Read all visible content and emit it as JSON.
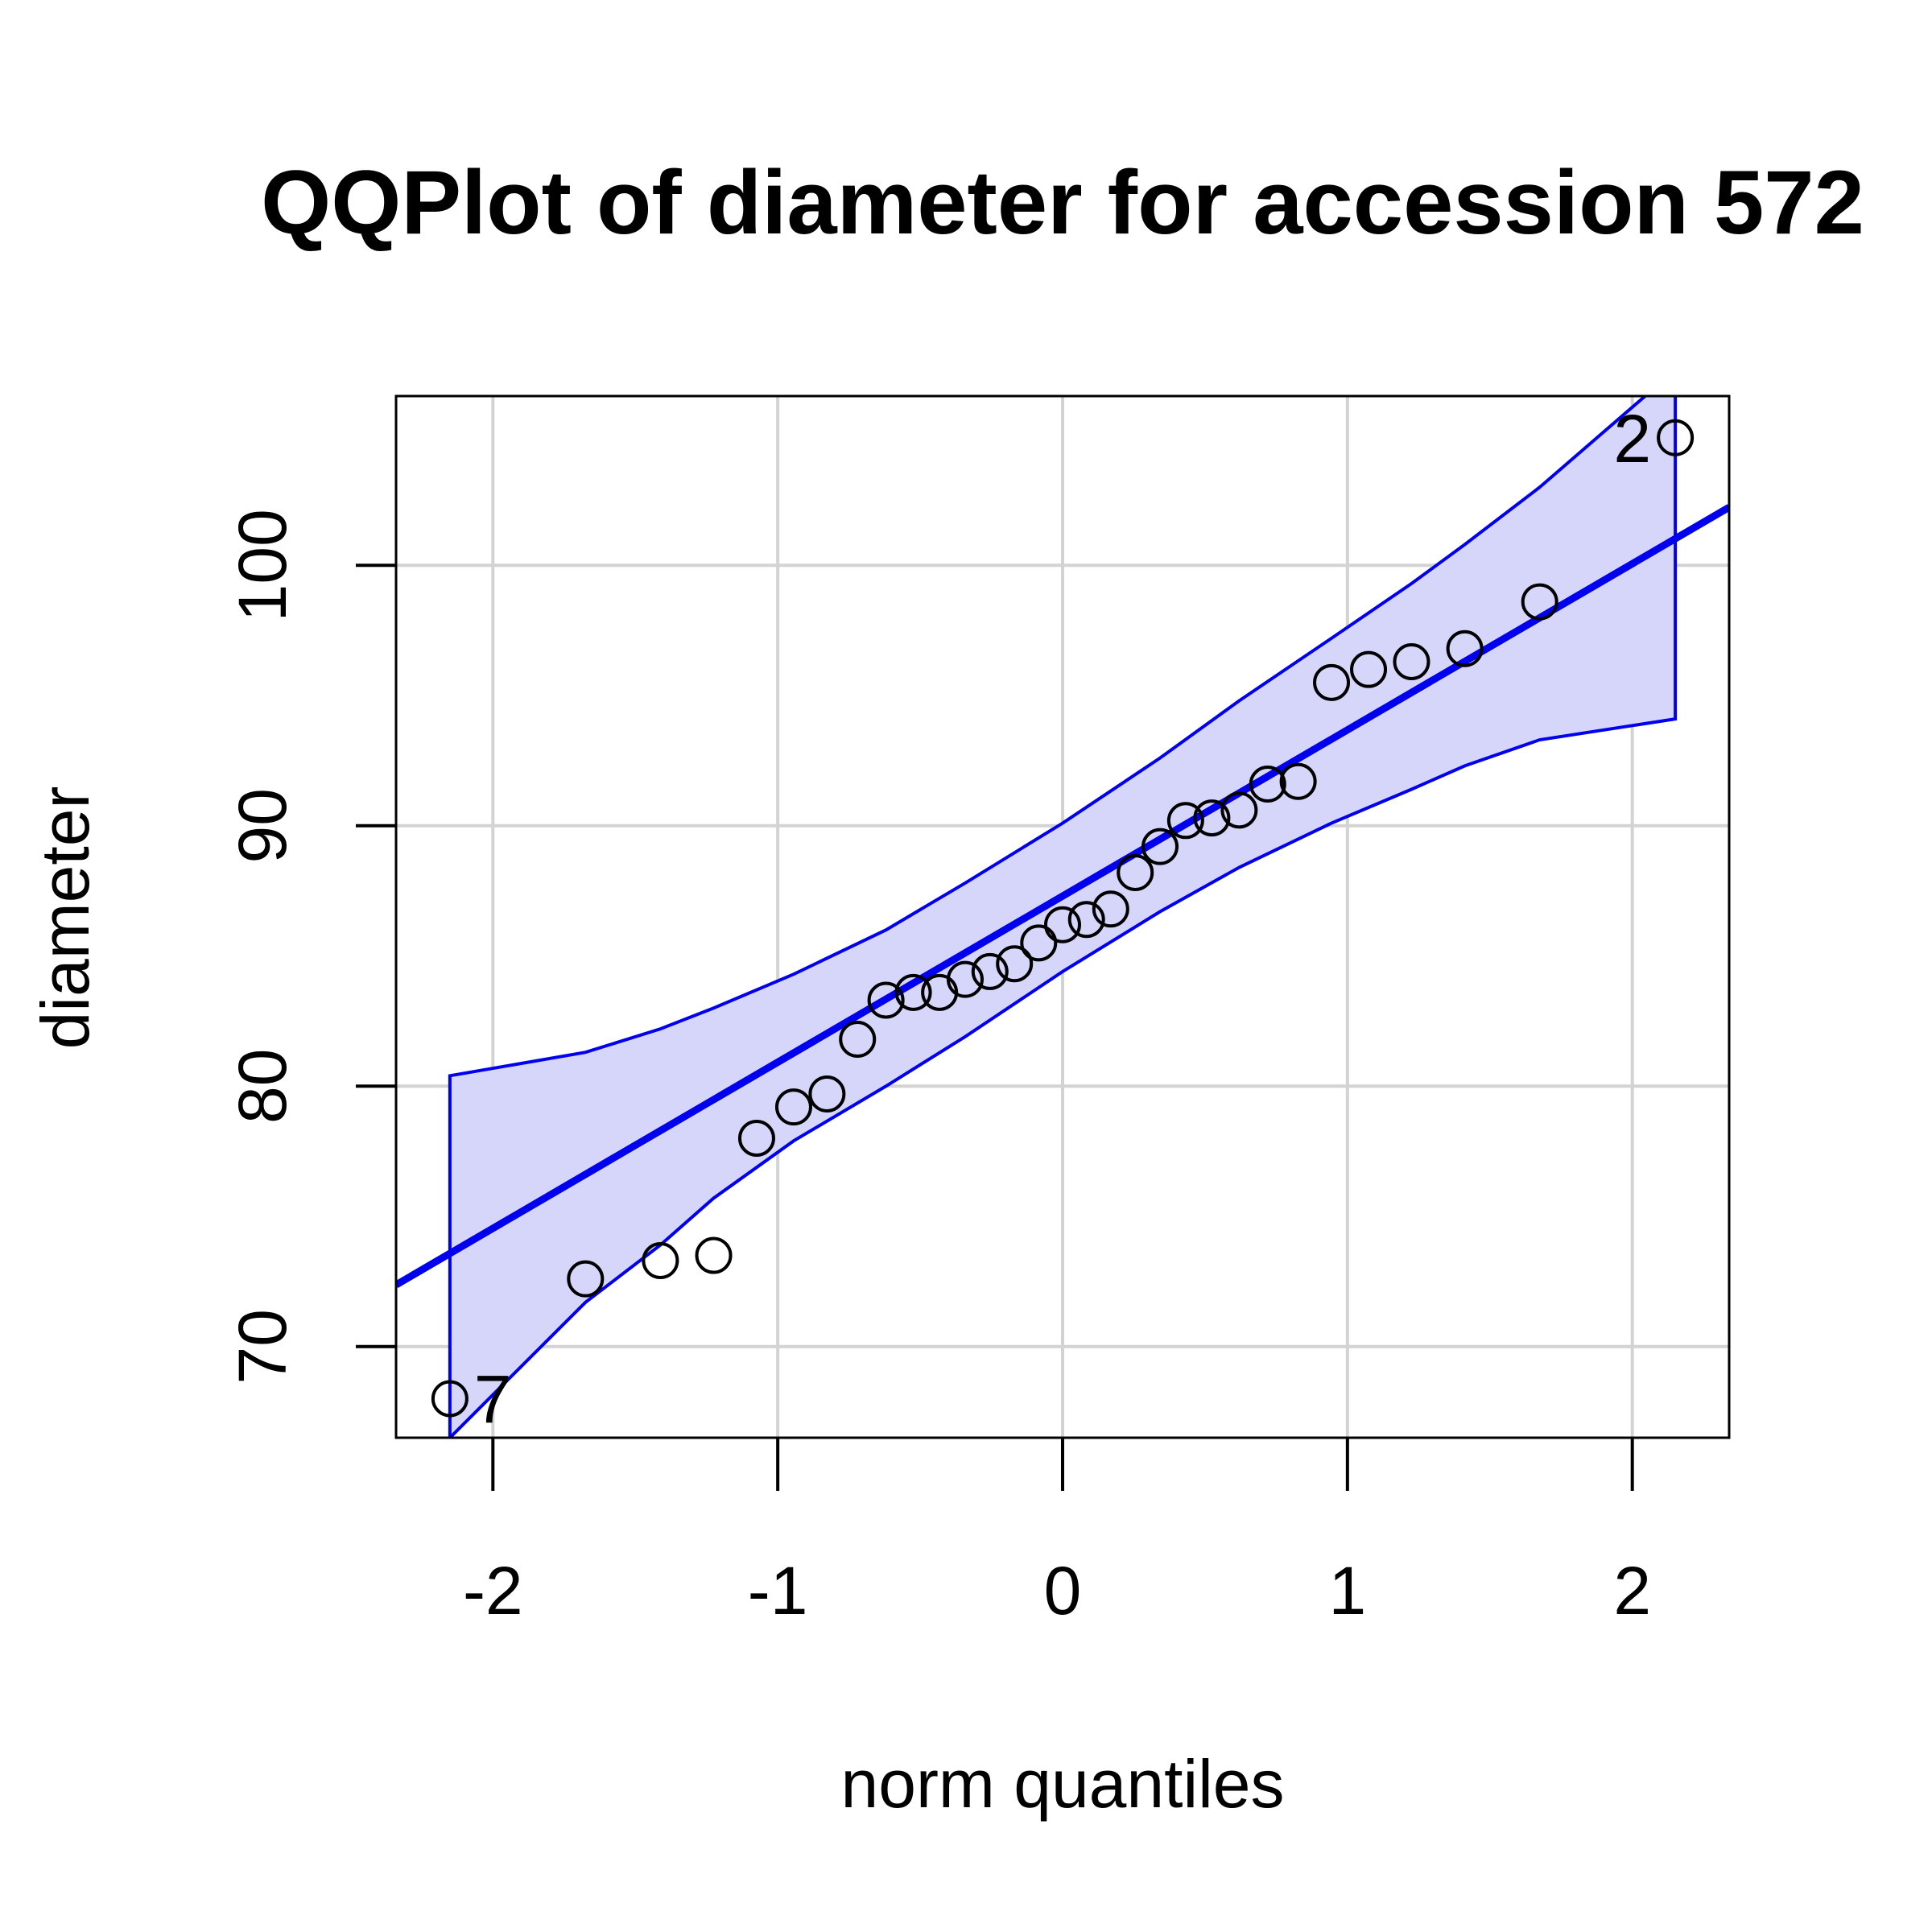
{
  "chart_data": {
    "type": "scatter",
    "title": "QQPlot of diameter for accession 572",
    "xlabel": "norm quantiles",
    "ylabel": "diameter",
    "xlim": [
      -2.34,
      2.34
    ],
    "ylim": [
      66.5,
      106.5
    ],
    "xticks": [
      -2,
      -1,
      0,
      1,
      2
    ],
    "yticks": [
      70,
      80,
      90,
      100
    ],
    "grid": true,
    "colors": {
      "band_fill": "#d6d6fb",
      "band_line": "#0000ee",
      "ref_line": "#0000ee",
      "points": "#000000",
      "grid": "#d3d3d3"
    },
    "reference_line": {
      "slope": 6.38,
      "intercept": 87.3
    },
    "points": {
      "x": [
        -2.151,
        -1.675,
        -1.412,
        -1.225,
        -1.074,
        -0.944,
        -0.827,
        -0.72,
        -0.62,
        -0.524,
        -0.432,
        -0.342,
        -0.255,
        -0.169,
        -0.084,
        0.0,
        0.084,
        0.169,
        0.255,
        0.342,
        0.432,
        0.524,
        0.62,
        0.72,
        0.827,
        0.944,
        1.074,
        1.225,
        1.412,
        1.675,
        2.151
      ],
      "y": [
        68.0,
        72.6,
        73.3,
        73.5,
        78.0,
        79.2,
        79.7,
        81.8,
        83.3,
        83.6,
        83.6,
        84.1,
        84.4,
        84.7,
        85.5,
        86.2,
        86.4,
        86.8,
        88.2,
        89.2,
        90.2,
        90.3,
        90.6,
        91.6,
        91.7,
        95.5,
        96.0,
        96.3,
        96.8,
        98.6,
        104.9
      ]
    },
    "band": {
      "x": [
        -2.151,
        -1.675,
        -1.412,
        -1.225,
        -0.944,
        -0.62,
        -0.342,
        0.0,
        0.342,
        0.62,
        0.944,
        1.225,
        1.412,
        1.675,
        2.151
      ],
      "upper": [
        80.4,
        81.3,
        82.2,
        83.0,
        84.3,
        86.0,
        87.8,
        90.1,
        92.6,
        94.8,
        97.2,
        99.3,
        100.8,
        103.0,
        107.5
      ],
      "lower": [
        66.5,
        71.7,
        73.9,
        75.7,
        77.9,
        80.0,
        81.9,
        84.4,
        86.7,
        88.4,
        90.1,
        91.4,
        92.3,
        93.3,
        94.1
      ]
    },
    "labels": [
      {
        "text": "7",
        "x": -2.151,
        "y": 68.0,
        "side": "right"
      },
      {
        "text": "2",
        "x": 2.151,
        "y": 104.9,
        "side": "left"
      }
    ]
  }
}
